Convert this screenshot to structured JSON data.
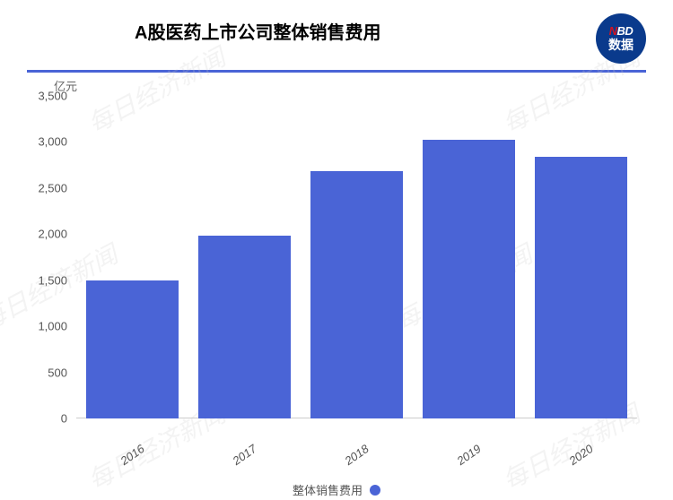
{
  "chart": {
    "type": "bar",
    "title": "A股医药上市公司整体销售费用",
    "title_fontsize": 20,
    "title_color": "#000000",
    "unit_label": "亿元",
    "categories": [
      "2016",
      "2017",
      "2018",
      "2019",
      "2020"
    ],
    "values": [
      1500,
      1980,
      2680,
      3020,
      2840
    ],
    "bar_color": "#4a64d6",
    "bar_width_ratio": 0.82,
    "ylim": [
      0,
      3500
    ],
    "yticks": [
      0,
      500,
      1000,
      1500,
      2000,
      2500,
      3000,
      3500
    ],
    "ytick_labels": [
      "0",
      "500",
      "1,000",
      "1,500",
      "2,000",
      "2,500",
      "3,000",
      "3,500"
    ],
    "axis_color": "#cccccc",
    "tick_label_color": "#555555",
    "tick_fontsize": 13,
    "xlabel_rotation": -35,
    "background_color": "#ffffff",
    "title_underline_color": "#4a64d6",
    "legend_label": "整体销售费用",
    "legend_swatch_color": "#4a64d6"
  },
  "logo": {
    "line1": "NBD",
    "line2": "数据",
    "bg_color": "#0a3a8c",
    "text_color": "#ffffff",
    "accent_color": "#d11522"
  },
  "watermark": {
    "text": "每日经济新闻",
    "color": "rgba(200,200,200,0.22)"
  }
}
